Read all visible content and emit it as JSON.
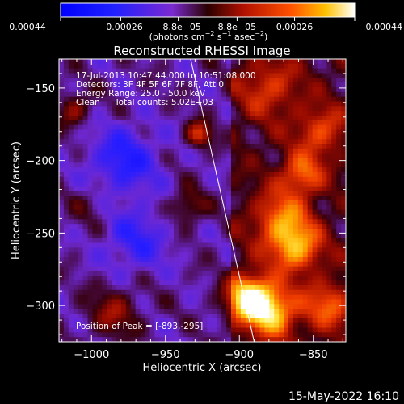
{
  "chart_data": {
    "type": "heatmap",
    "title": "Reconstructed RHESSI Image",
    "xlabel": "Heliocentric X (arcsec)",
    "ylabel": "Heliocentric Y (arcsec)",
    "xlim": [
      -1022,
      -828
    ],
    "ylim": [
      -325,
      -130
    ],
    "x_ticks": [
      -1000,
      -950,
      -900,
      -850
    ],
    "x_tick_labels": [
      "−1000",
      "−950",
      "−900",
      "−850"
    ],
    "y_ticks": [
      -150,
      -200,
      -250,
      -300
    ],
    "y_tick_labels": [
      "−150",
      "−200",
      "−250",
      "−300"
    ],
    "colorbar": {
      "min": -0.00044,
      "max": 0.00044,
      "ticks": [
        -0.00044,
        -0.00026,
        -8.8e-05,
        8.8e-05,
        0.00026,
        0.00044
      ],
      "tick_labels": [
        "−0.00044",
        "−0.00026",
        "−8.8e−05",
        "8.8e−05",
        "0.00026",
        "0.00044"
      ],
      "unit_parts": [
        "(photons cm",
        "−2",
        " s",
        "−1",
        " asec",
        "−2",
        ")"
      ]
    },
    "annotations": {
      "time_range": "17-Jul-2013 10:47:44.000 to 10:51:08.000",
      "detectors": "Detectors: 3F 4F 5F 6F 7F 8F, Att 0",
      "energy_range": "Energy Range: 25.0 - 50.0 keV",
      "clean_label": "Clean",
      "total_counts": "Total counts: 5.02E+03",
      "peak_position": "Position of Peak = [-893,-295]"
    },
    "peak": {
      "x": -893,
      "y": -295
    },
    "limb_line": {
      "points": [
        [
          -933,
          -130
        ],
        [
          -890,
          -325
        ]
      ]
    },
    "grid": false,
    "sources": [
      {
        "x": -893,
        "y": -295,
        "amplitude": 1.0,
        "sigma": 11
      },
      {
        "x": -878,
        "y": -305,
        "amplitude": 0.75,
        "sigma": 12
      },
      {
        "x": -862,
        "y": -260,
        "amplitude": 0.7,
        "sigma": 12
      },
      {
        "x": -872,
        "y": -240,
        "amplitude": 0.55,
        "sigma": 13
      },
      {
        "x": -858,
        "y": -210,
        "amplitude": 0.55,
        "sigma": 10
      },
      {
        "x": -845,
        "y": -180,
        "amplitude": 0.45,
        "sigma": 12
      },
      {
        "x": -880,
        "y": -150,
        "amplitude": 0.4,
        "sigma": 14
      },
      {
        "x": -840,
        "y": -300,
        "amplitude": 0.5,
        "sigma": 12
      },
      {
        "x": -927,
        "y": -182,
        "amplitude": 0.55,
        "sigma": 6
      },
      {
        "x": -935,
        "y": -232,
        "amplitude": 0.35,
        "sigma": 8
      },
      {
        "x": -985,
        "y": -305,
        "amplitude": 0.35,
        "sigma": 12
      },
      {
        "x": -1012,
        "y": -165,
        "amplitude": 0.35,
        "sigma": 8
      },
      {
        "x": -1000,
        "y": -230,
        "amplitude": 0.15,
        "sigma": 10
      },
      {
        "x": -978,
        "y": -200,
        "amplitude": -0.45,
        "sigma": 16
      },
      {
        "x": -970,
        "y": -255,
        "amplitude": -0.35,
        "sigma": 15
      }
    ]
  },
  "footer": {
    "timestamp": "15-May-2022 16:10"
  },
  "colors": {
    "background": "#000000",
    "axis": "#ffffff",
    "limb_line": "#ffffff"
  }
}
